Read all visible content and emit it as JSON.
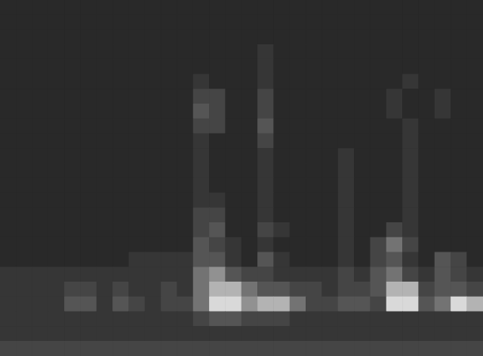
{
  "chart_data": {
    "type": "heatmap",
    "tick_labels": false,
    "grid": false,
    "value_range": [
      0,
      10
    ],
    "cells": [
      [
        2,
        2,
        2,
        2,
        2,
        2,
        2,
        2,
        2,
        2,
        2,
        2,
        2,
        2,
        2,
        2,
        2,
        2,
        2,
        2,
        2,
        2,
        2,
        2,
        2,
        2,
        2,
        2,
        2,
        2
      ],
      [
        2,
        2,
        2,
        2,
        2,
        2,
        2,
        2,
        2,
        2,
        2,
        2,
        2,
        2,
        2,
        2,
        2,
        2,
        2,
        2,
        2,
        2,
        2,
        2,
        2,
        2,
        2,
        2,
        2,
        2
      ],
      [
        2,
        2,
        2,
        2,
        2,
        2,
        2,
        2,
        2,
        2,
        2,
        2,
        2,
        2,
        2,
        2,
        2,
        2,
        2,
        2,
        2,
        2,
        2,
        2,
        2,
        2,
        2,
        2,
        2,
        2
      ],
      [
        2,
        2,
        2,
        2,
        2,
        2,
        2,
        2,
        2,
        2,
        2,
        2,
        2,
        2,
        2,
        2,
        3,
        2,
        2,
        2,
        2,
        2,
        2,
        2,
        2,
        2,
        2,
        2,
        2,
        2
      ],
      [
        2,
        2,
        2,
        2,
        2,
        2,
        2,
        2,
        2,
        2,
        2,
        2,
        2,
        2,
        2,
        2,
        3,
        2,
        2,
        2,
        2,
        2,
        2,
        2,
        2,
        2,
        2,
        2,
        2,
        2
      ],
      [
        2,
        2,
        2,
        2,
        2,
        2,
        2,
        2,
        2,
        2,
        2,
        2,
        3,
        2,
        2,
        2,
        3,
        2,
        2,
        2,
        2,
        2,
        2,
        2,
        2,
        3,
        2,
        2,
        2,
        2
      ],
      [
        2,
        2,
        2,
        2,
        2,
        2,
        2,
        2,
        2,
        2,
        2,
        2,
        4,
        4,
        2,
        2,
        4,
        2,
        2,
        2,
        2,
        2,
        2,
        2,
        3,
        2,
        2,
        3,
        2,
        2
      ],
      [
        2,
        2,
        2,
        2,
        2,
        2,
        2,
        2,
        2,
        2,
        2,
        2,
        5,
        4,
        2,
        2,
        4,
        2,
        2,
        2,
        2,
        2,
        2,
        2,
        3,
        2,
        2,
        3,
        2,
        2
      ],
      [
        2,
        2,
        2,
        2,
        2,
        2,
        2,
        2,
        2,
        2,
        2,
        2,
        4,
        4,
        2,
        2,
        5,
        2,
        2,
        2,
        2,
        2,
        2,
        2,
        2,
        3,
        2,
        2,
        2,
        2
      ],
      [
        2,
        2,
        2,
        2,
        2,
        2,
        2,
        2,
        2,
        2,
        2,
        2,
        3,
        2,
        2,
        2,
        4,
        2,
        2,
        2,
        2,
        2,
        2,
        2,
        2,
        3,
        2,
        2,
        2,
        2
      ],
      [
        2,
        2,
        2,
        2,
        2,
        2,
        2,
        2,
        2,
        2,
        2,
        2,
        3,
        2,
        2,
        2,
        3,
        2,
        2,
        2,
        2,
        3,
        2,
        2,
        2,
        3,
        2,
        2,
        2,
        2
      ],
      [
        2,
        2,
        2,
        2,
        2,
        2,
        2,
        2,
        2,
        2,
        2,
        2,
        3,
        2,
        2,
        2,
        3,
        2,
        2,
        2,
        2,
        3,
        2,
        2,
        2,
        3,
        2,
        2,
        2,
        2
      ],
      [
        2,
        2,
        2,
        2,
        2,
        2,
        2,
        2,
        2,
        2,
        2,
        2,
        3,
        2,
        2,
        2,
        3,
        2,
        2,
        2,
        2,
        3,
        2,
        2,
        2,
        3,
        2,
        2,
        2,
        2
      ],
      [
        2,
        2,
        2,
        2,
        2,
        2,
        2,
        2,
        2,
        2,
        2,
        2,
        3,
        3,
        2,
        2,
        3,
        2,
        2,
        2,
        2,
        3,
        2,
        2,
        2,
        3,
        2,
        2,
        2,
        2
      ],
      [
        2,
        2,
        2,
        2,
        2,
        2,
        2,
        2,
        2,
        2,
        2,
        2,
        4,
        4,
        2,
        2,
        3,
        2,
        2,
        2,
        2,
        3,
        2,
        2,
        2,
        3,
        2,
        2,
        2,
        2
      ],
      [
        2,
        2,
        2,
        2,
        2,
        2,
        2,
        2,
        2,
        2,
        2,
        2,
        4,
        5,
        2,
        2,
        4,
        3,
        2,
        2,
        2,
        3,
        2,
        2,
        4,
        3,
        2,
        2,
        2,
        2
      ],
      [
        2,
        2,
        2,
        2,
        2,
        2,
        2,
        2,
        2,
        2,
        2,
        2,
        5,
        4,
        3,
        2,
        3,
        2,
        2,
        2,
        2,
        3,
        2,
        4,
        6,
        4,
        2,
        2,
        2,
        2
      ],
      [
        2,
        2,
        2,
        2,
        2,
        2,
        2,
        2,
        3,
        3,
        3,
        3,
        5,
        5,
        3,
        2,
        5,
        3,
        2,
        2,
        2,
        3,
        2,
        4,
        5,
        3,
        2,
        5,
        4,
        2
      ],
      [
        3,
        3,
        3,
        3,
        3,
        3,
        3,
        3,
        3,
        3,
        3,
        3,
        6,
        7,
        5,
        4,
        4,
        3,
        3,
        3,
        3,
        4,
        3,
        5,
        6,
        4,
        3,
        5,
        4,
        3
      ],
      [
        3,
        3,
        3,
        3,
        4,
        4,
        3,
        4,
        3,
        3,
        4,
        3,
        6,
        8,
        8,
        6,
        5,
        5,
        4,
        4,
        3,
        4,
        4,
        5,
        8,
        8,
        4,
        5,
        5,
        4
      ],
      [
        3,
        3,
        3,
        3,
        5,
        5,
        3,
        5,
        4,
        3,
        4,
        4,
        6,
        9,
        9,
        7,
        8,
        8,
        6,
        4,
        4,
        5,
        5,
        4,
        9,
        9,
        5,
        6,
        9,
        8
      ],
      [
        3,
        3,
        3,
        3,
        3,
        3,
        3,
        3,
        3,
        3,
        3,
        3,
        4,
        5,
        5,
        4,
        4,
        4,
        3,
        3,
        3,
        3,
        3,
        3,
        3,
        3,
        3,
        3,
        3,
        3
      ],
      [
        3,
        3,
        3,
        3,
        3,
        3,
        3,
        3,
        3,
        3,
        3,
        3,
        3,
        3,
        3,
        3,
        3,
        3,
        3,
        3,
        3,
        3,
        3,
        3,
        3,
        3,
        3,
        3,
        3,
        3
      ],
      [
        4,
        4,
        4,
        4,
        4,
        4,
        4,
        4,
        4,
        4,
        4,
        4,
        4,
        4,
        4,
        4,
        4,
        4,
        4,
        4,
        4,
        4,
        4,
        4,
        4,
        4,
        4,
        4,
        4,
        4
      ]
    ]
  }
}
